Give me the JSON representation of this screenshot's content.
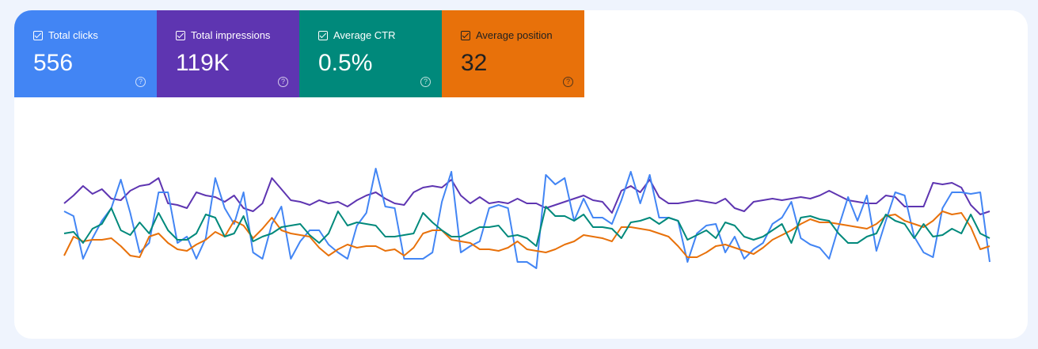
{
  "metrics": [
    {
      "label": "Total clicks",
      "value": "556",
      "color": "#4285f4",
      "text_color": "#ffffff"
    },
    {
      "label": "Total impressions",
      "value": "119K",
      "color": "#5e35b1",
      "text_color": "#ffffff"
    },
    {
      "label": "Average CTR",
      "value": "0.5%",
      "color": "#00897b",
      "text_color": "#ffffff"
    },
    {
      "label": "Average position",
      "value": "32",
      "color": "#e8710a",
      "text_color": "#212121"
    }
  ],
  "help_glyph": "?",
  "chart_data": {
    "type": "line",
    "title": "",
    "xlabel": "",
    "ylabel": "",
    "grid": false,
    "axes_visible": false,
    "series": [
      {
        "name": "Total impressions",
        "color": "#5e35b1",
        "values": [
          53,
          58,
          64,
          59,
          62,
          56,
          55,
          61,
          64,
          65,
          69,
          53,
          52,
          50,
          60,
          58,
          57,
          54,
          58,
          50,
          48,
          53,
          69,
          62,
          55,
          54,
          52,
          55,
          53,
          54,
          51,
          55,
          58,
          60,
          56,
          53,
          52,
          60,
          63,
          64,
          63,
          68,
          58,
          53,
          57,
          53,
          54,
          53,
          56,
          53,
          53,
          50,
          52,
          54,
          56,
          58,
          55,
          54,
          47,
          61,
          64,
          60,
          68,
          57,
          53,
          53,
          54,
          55,
          54,
          53,
          56,
          50,
          48,
          54,
          55,
          56,
          55,
          56,
          57,
          56,
          58,
          61,
          58,
          55,
          54,
          53,
          53,
          58,
          57,
          51,
          51,
          51,
          66,
          65,
          66,
          63,
          52,
          46,
          48
        ]
      },
      {
        "name": "Total clicks",
        "color": "#4285f4",
        "values": [
          48,
          45,
          18,
          31,
          42,
          50,
          68,
          47,
          22,
          28,
          60,
          60,
          28,
          32,
          18,
          31,
          69,
          50,
          40,
          60,
          22,
          18,
          40,
          51,
          18,
          29,
          36,
          36,
          27,
          22,
          18,
          39,
          47,
          75,
          51,
          50,
          18,
          18,
          18,
          22,
          54,
          73,
          22,
          26,
          29,
          50,
          52,
          50,
          16,
          16,
          12,
          71,
          65,
          69,
          42,
          56,
          44,
          44,
          40,
          55,
          73,
          53,
          71,
          44,
          44,
          42,
          16,
          34,
          39,
          40,
          22,
          32,
          18,
          24,
          28,
          40,
          44,
          54,
          31,
          27,
          25,
          18,
          38,
          57,
          42,
          58,
          23,
          42,
          60,
          58,
          32,
          22,
          19,
          50,
          60,
          60,
          59,
          60,
          16
        ]
      },
      {
        "name": "Average position",
        "color": "#e8710a",
        "values": [
          20,
          32,
          29,
          30,
          30,
          31,
          26,
          20,
          19,
          32,
          34,
          28,
          24,
          23,
          27,
          30,
          35,
          32,
          42,
          39,
          31,
          37,
          44,
          36,
          34,
          33,
          32,
          25,
          20,
          24,
          27,
          25,
          26,
          26,
          23,
          24,
          20,
          25,
          34,
          36,
          36,
          30,
          29,
          28,
          24,
          24,
          23,
          25,
          29,
          24,
          23,
          22,
          24,
          27,
          29,
          33,
          32,
          31,
          29,
          38,
          38,
          37,
          36,
          34,
          32,
          26,
          19,
          19,
          22,
          26,
          27,
          25,
          23,
          21,
          25,
          30,
          33,
          36,
          40,
          43,
          41,
          41,
          40,
          39,
          38,
          37,
          40,
          45,
          46,
          42,
          40,
          38,
          42,
          48,
          46,
          47,
          38,
          24,
          26
        ]
      },
      {
        "name": "Average CTR",
        "color": "#00897b",
        "values": [
          34,
          35,
          28,
          37,
          40,
          50,
          36,
          33,
          41,
          34,
          47,
          36,
          30,
          30,
          34,
          46,
          44,
          32,
          34,
          45,
          29,
          32,
          34,
          38,
          39,
          40,
          33,
          28,
          34,
          48,
          39,
          41,
          40,
          39,
          32,
          32,
          33,
          34,
          47,
          41,
          36,
          32,
          32,
          35,
          38,
          38,
          39,
          32,
          33,
          31,
          26,
          51,
          45,
          45,
          42,
          46,
          38,
          38,
          37,
          31,
          41,
          42,
          44,
          40,
          44,
          42,
          30,
          33,
          36,
          31,
          41,
          39,
          32,
          30,
          32,
          36,
          40,
          28,
          44,
          45,
          43,
          42,
          34,
          28,
          28,
          32,
          34,
          46,
          42,
          40,
          31,
          40,
          32,
          33,
          37,
          34,
          46,
          34,
          31
        ]
      }
    ]
  }
}
